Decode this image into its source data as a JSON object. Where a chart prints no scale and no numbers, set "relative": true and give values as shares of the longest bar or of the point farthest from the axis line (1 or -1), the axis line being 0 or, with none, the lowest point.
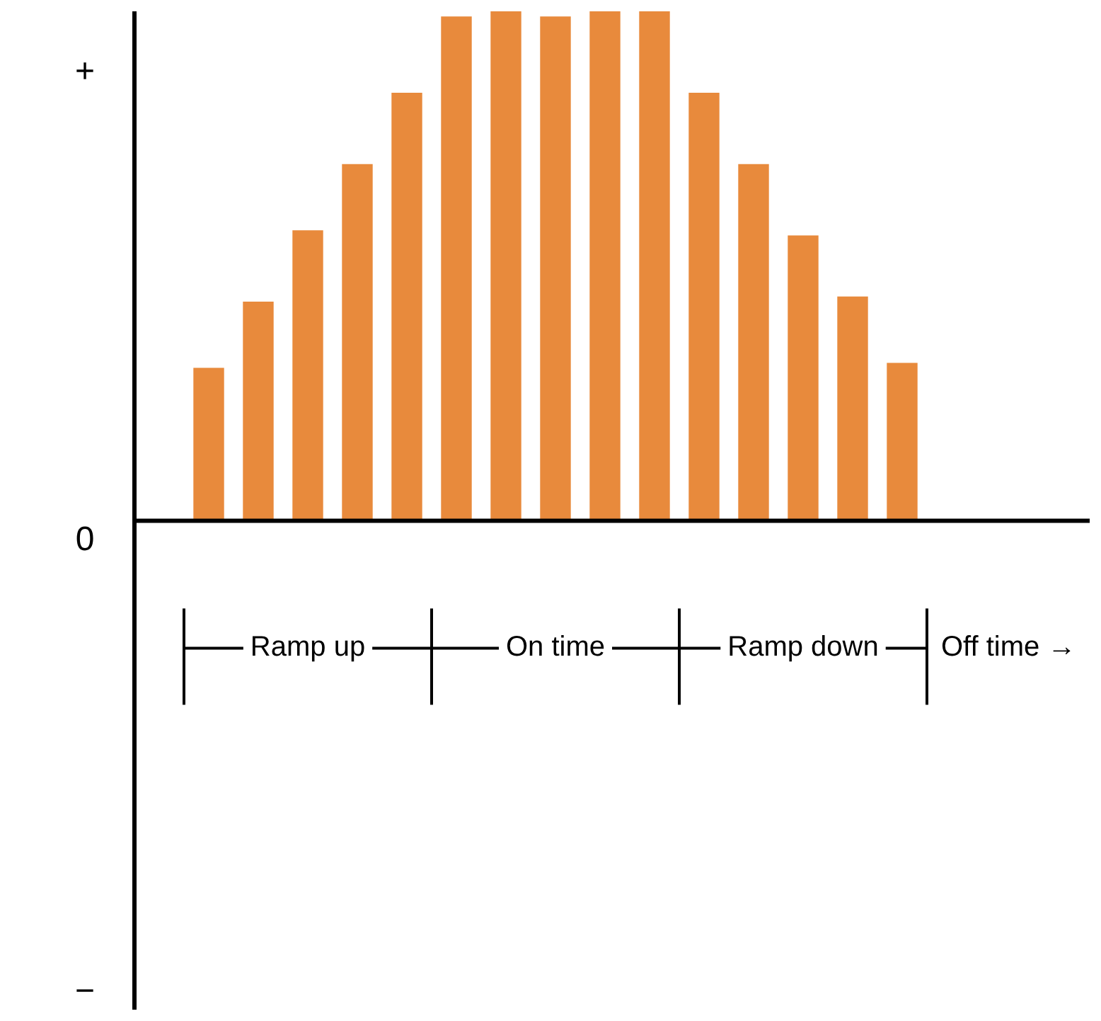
{
  "chart_data": {
    "type": "bar",
    "relative": true,
    "color": "#e88a3c",
    "categories": [
      null,
      null,
      null,
      null,
      null,
      null,
      null,
      null,
      null,
      null,
      null,
      null,
      null,
      null,
      null
    ],
    "values": [
      0.3,
      0.43,
      0.57,
      0.7,
      0.84,
      0.99,
      1,
      0.99,
      1,
      1,
      0.84,
      0.7,
      0.56,
      0.44,
      0.31
    ],
    "annotations": [
      "+",
      "0",
      "−",
      "Ramp up",
      "On time",
      "Ramp down",
      "Off time →"
    ]
  }
}
